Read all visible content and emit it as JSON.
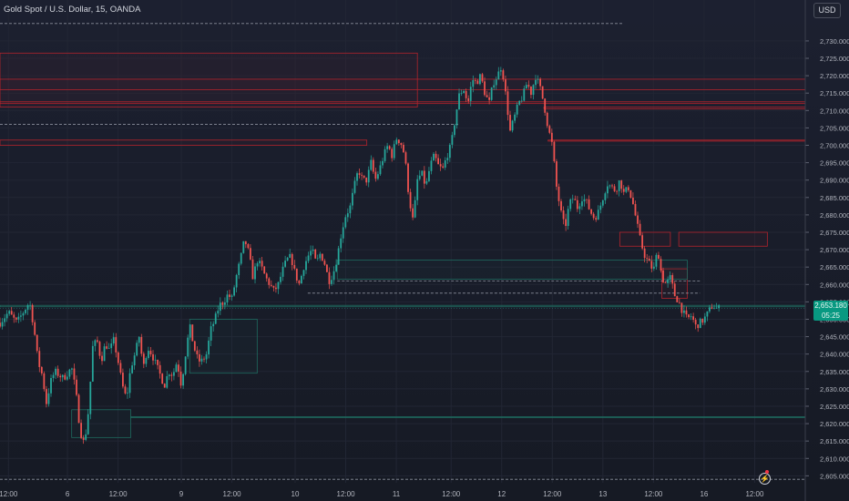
{
  "header": {
    "symbol_title": "Gold Spot / U.S. Dollar, 15, OANDA",
    "currency_button": "USD"
  },
  "price_badge": {
    "price": "2,653.180",
    "countdown": "05:25"
  },
  "colors": {
    "up": "#26a69a",
    "down": "#ef5350",
    "zone_red": "#b2232c",
    "zone_green": "#1e6b5f",
    "grid": "#222634",
    "axis_text": "#b2b5be",
    "dashed": "#8a8f9c"
  },
  "icons": [
    "lightning-icon"
  ],
  "chart_data": {
    "type": "candlestick",
    "title": "Gold Spot / U.S. Dollar, 15, OANDA",
    "ylim": [
      2603,
      2736
    ],
    "y_ticks": [
      2605,
      2610,
      2615,
      2620,
      2625,
      2630,
      2635,
      2640,
      2645,
      2650,
      2655,
      2660,
      2665,
      2670,
      2675,
      2680,
      2685,
      2690,
      2695,
      2700,
      2705,
      2710,
      2715,
      2720,
      2725,
      2730
    ],
    "x_ticks": [
      {
        "label": "12:00",
        "at": -14
      },
      {
        "label": "6",
        "at": 0
      },
      {
        "label": "12:00",
        "at": 12
      },
      {
        "label": "9",
        "at": 27
      },
      {
        "label": "12:00",
        "at": 39
      },
      {
        "label": "10",
        "at": 54
      },
      {
        "label": "12:00",
        "at": 66
      },
      {
        "label": "11",
        "at": 78
      },
      {
        "label": "12:00",
        "at": 91
      },
      {
        "label": "12",
        "at": 103
      },
      {
        "label": "12:00",
        "at": 115
      },
      {
        "label": "13",
        "at": 127
      },
      {
        "label": "12:00",
        "at": 139
      },
      {
        "label": "16",
        "at": 151
      },
      {
        "label": "12:00",
        "at": 163
      }
    ],
    "xlim": [
      -16,
      175
    ],
    "last_price": 2653.18,
    "price_path": [
      [
        -16,
        2649
      ],
      [
        -14,
        2652
      ],
      [
        -12,
        2649
      ],
      [
        -10,
        2653
      ],
      [
        -9,
        2655
      ],
      [
        -8,
        2648
      ],
      [
        -7,
        2638
      ],
      [
        -6,
        2634
      ],
      [
        -5,
        2626
      ],
      [
        -4,
        2632
      ],
      [
        -3,
        2635
      ],
      [
        -1,
        2633
      ],
      [
        1,
        2636
      ],
      [
        2,
        2629
      ],
      [
        3,
        2618
      ],
      [
        4,
        2614
      ],
      [
        5,
        2624
      ],
      [
        6,
        2642
      ],
      [
        7,
        2644
      ],
      [
        8,
        2638
      ],
      [
        9,
        2643
      ],
      [
        10,
        2641
      ],
      [
        11,
        2644
      ],
      [
        12,
        2638
      ],
      [
        13,
        2631
      ],
      [
        14,
        2627
      ],
      [
        15,
        2636
      ],
      [
        16,
        2640
      ],
      [
        17,
        2645
      ],
      [
        18,
        2636
      ],
      [
        19,
        2642
      ],
      [
        20,
        2640
      ],
      [
        21,
        2637
      ],
      [
        22,
        2634
      ],
      [
        23,
        2631
      ],
      [
        24,
        2635
      ],
      [
        25,
        2634
      ],
      [
        26,
        2638
      ],
      [
        27,
        2631
      ],
      [
        28,
        2640
      ],
      [
        29,
        2648
      ],
      [
        30,
        2642
      ],
      [
        31,
        2638
      ],
      [
        32,
        2638
      ],
      [
        33,
        2640
      ],
      [
        34,
        2647
      ],
      [
        35,
        2650
      ],
      [
        36,
        2654
      ],
      [
        37,
        2655
      ],
      [
        38,
        2657
      ],
      [
        39,
        2656
      ],
      [
        40,
        2662
      ],
      [
        41,
        2667
      ],
      [
        42,
        2673
      ],
      [
        43,
        2669
      ],
      [
        44,
        2662
      ],
      [
        45,
        2667
      ],
      [
        46,
        2665
      ],
      [
        47,
        2662
      ],
      [
        48,
        2660
      ],
      [
        49,
        2658
      ],
      [
        50,
        2660
      ],
      [
        51,
        2664
      ],
      [
        52,
        2667
      ],
      [
        53,
        2668
      ],
      [
        54,
        2663
      ],
      [
        55,
        2660
      ],
      [
        56,
        2665
      ],
      [
        57,
        2668
      ],
      [
        58,
        2670
      ],
      [
        59,
        2666
      ],
      [
        60,
        2669
      ],
      [
        61,
        2666
      ],
      [
        62,
        2661
      ],
      [
        63,
        2663
      ],
      [
        64,
        2668
      ],
      [
        65,
        2675
      ],
      [
        66,
        2680
      ],
      [
        67,
        2682
      ],
      [
        68,
        2688
      ],
      [
        69,
        2693
      ],
      [
        70,
        2690
      ],
      [
        71,
        2690
      ],
      [
        72,
        2695
      ],
      [
        73,
        2690
      ],
      [
        74,
        2693
      ],
      [
        75,
        2697
      ],
      [
        76,
        2700
      ],
      [
        77,
        2697
      ],
      [
        78,
        2702
      ],
      [
        79,
        2701
      ],
      [
        80,
        2697
      ],
      [
        81,
        2685
      ],
      [
        82,
        2678
      ],
      [
        83,
        2690
      ],
      [
        84,
        2692
      ],
      [
        85,
        2688
      ],
      [
        86,
        2694
      ],
      [
        87,
        2697
      ],
      [
        88,
        2694
      ],
      [
        89,
        2693
      ],
      [
        90,
        2697
      ],
      [
        91,
        2700
      ],
      [
        92,
        2708
      ],
      [
        93,
        2715
      ],
      [
        94,
        2716
      ],
      [
        95,
        2712
      ],
      [
        96,
        2719
      ],
      [
        97,
        2718
      ],
      [
        98,
        2720
      ],
      [
        99,
        2715
      ],
      [
        100,
        2712
      ],
      [
        101,
        2718
      ],
      [
        102,
        2720
      ],
      [
        103,
        2723
      ],
      [
        104,
        2714
      ],
      [
        105,
        2704
      ],
      [
        106,
        2708
      ],
      [
        107,
        2712
      ],
      [
        108,
        2714
      ],
      [
        109,
        2718
      ],
      [
        110,
        2715
      ],
      [
        111,
        2720
      ],
      [
        112,
        2717
      ],
      [
        113,
        2712
      ],
      [
        114,
        2705
      ],
      [
        115,
        2700
      ],
      [
        116,
        2688
      ],
      [
        117,
        2681
      ],
      [
        118,
        2676
      ],
      [
        119,
        2683
      ],
      [
        120,
        2685
      ],
      [
        121,
        2682
      ],
      [
        122,
        2685
      ],
      [
        123,
        2684
      ],
      [
        124,
        2681
      ],
      [
        125,
        2679
      ],
      [
        126,
        2681
      ],
      [
        127,
        2685
      ],
      [
        128,
        2689
      ],
      [
        129,
        2688
      ],
      [
        130,
        2687
      ],
      [
        131,
        2690
      ],
      [
        132,
        2686
      ],
      [
        133,
        2688
      ],
      [
        134,
        2684
      ],
      [
        135,
        2678
      ],
      [
        136,
        2672
      ],
      [
        137,
        2668
      ],
      [
        138,
        2666
      ],
      [
        139,
        2664
      ],
      [
        140,
        2670
      ],
      [
        141,
        2662
      ],
      [
        142,
        2660
      ],
      [
        143,
        2662
      ],
      [
        144,
        2657
      ],
      [
        145,
        2655
      ],
      [
        146,
        2652
      ],
      [
        147,
        2650
      ],
      [
        148,
        2651
      ],
      [
        149,
        2648
      ],
      [
        150,
        2649
      ],
      [
        151,
        2650
      ],
      [
        152,
        2652
      ],
      [
        153,
        2654
      ],
      [
        154,
        2653
      ],
      [
        155,
        2653.18
      ]
    ],
    "zones_red": [
      {
        "x0": -16,
        "x1": 83,
        "y0": 2726.5,
        "y1": 2711
      },
      {
        "x0": -16,
        "x1": 175,
        "y0": 2719,
        "y1": 2716
      },
      {
        "x0": -16,
        "x1": 175,
        "y0": 2712.5,
        "y1": 2712
      },
      {
        "x0": -16,
        "x1": 71,
        "y0": 2701.5,
        "y1": 2700
      },
      {
        "x0": 113,
        "x1": 175,
        "y0": 2711,
        "y1": 2710.5
      },
      {
        "x0": 114,
        "x1": 175,
        "y0": 2701.5,
        "y1": 2701.2
      },
      {
        "x0": 145,
        "x1": 166,
        "y0": 2675,
        "y1": 2671
      },
      {
        "x0": 141,
        "x1": 147,
        "y0": 2664.5,
        "y1": 2656
      },
      {
        "x0": 131,
        "x1": 143,
        "y0": 2675,
        "y1": 2671
      }
    ],
    "zones_green": [
      {
        "x0": 29,
        "x1": 45,
        "y0": 2650,
        "y1": 2634.5
      },
      {
        "x0": 1,
        "x1": 15,
        "y0": 2624,
        "y1": 2616
      },
      {
        "x0": 64,
        "x1": 147,
        "y0": 2667,
        "y1": 2661.5
      },
      {
        "x0": -16,
        "x1": 175,
        "y0": 2654,
        "y1": 2653.6
      },
      {
        "x0": 15,
        "x1": 175,
        "y0": 2622,
        "y1": 2621.8
      }
    ],
    "dashed_levels": [
      {
        "x0": -16,
        "x1": 132,
        "y": 2735
      },
      {
        "x0": -16,
        "x1": 93,
        "y": 2706
      },
      {
        "x0": 57,
        "x1": 150,
        "y": 2657.5
      },
      {
        "x0": 64,
        "x1": 150,
        "y": 2661
      },
      {
        "x0": -16,
        "x1": 175,
        "y": 2604
      }
    ]
  }
}
